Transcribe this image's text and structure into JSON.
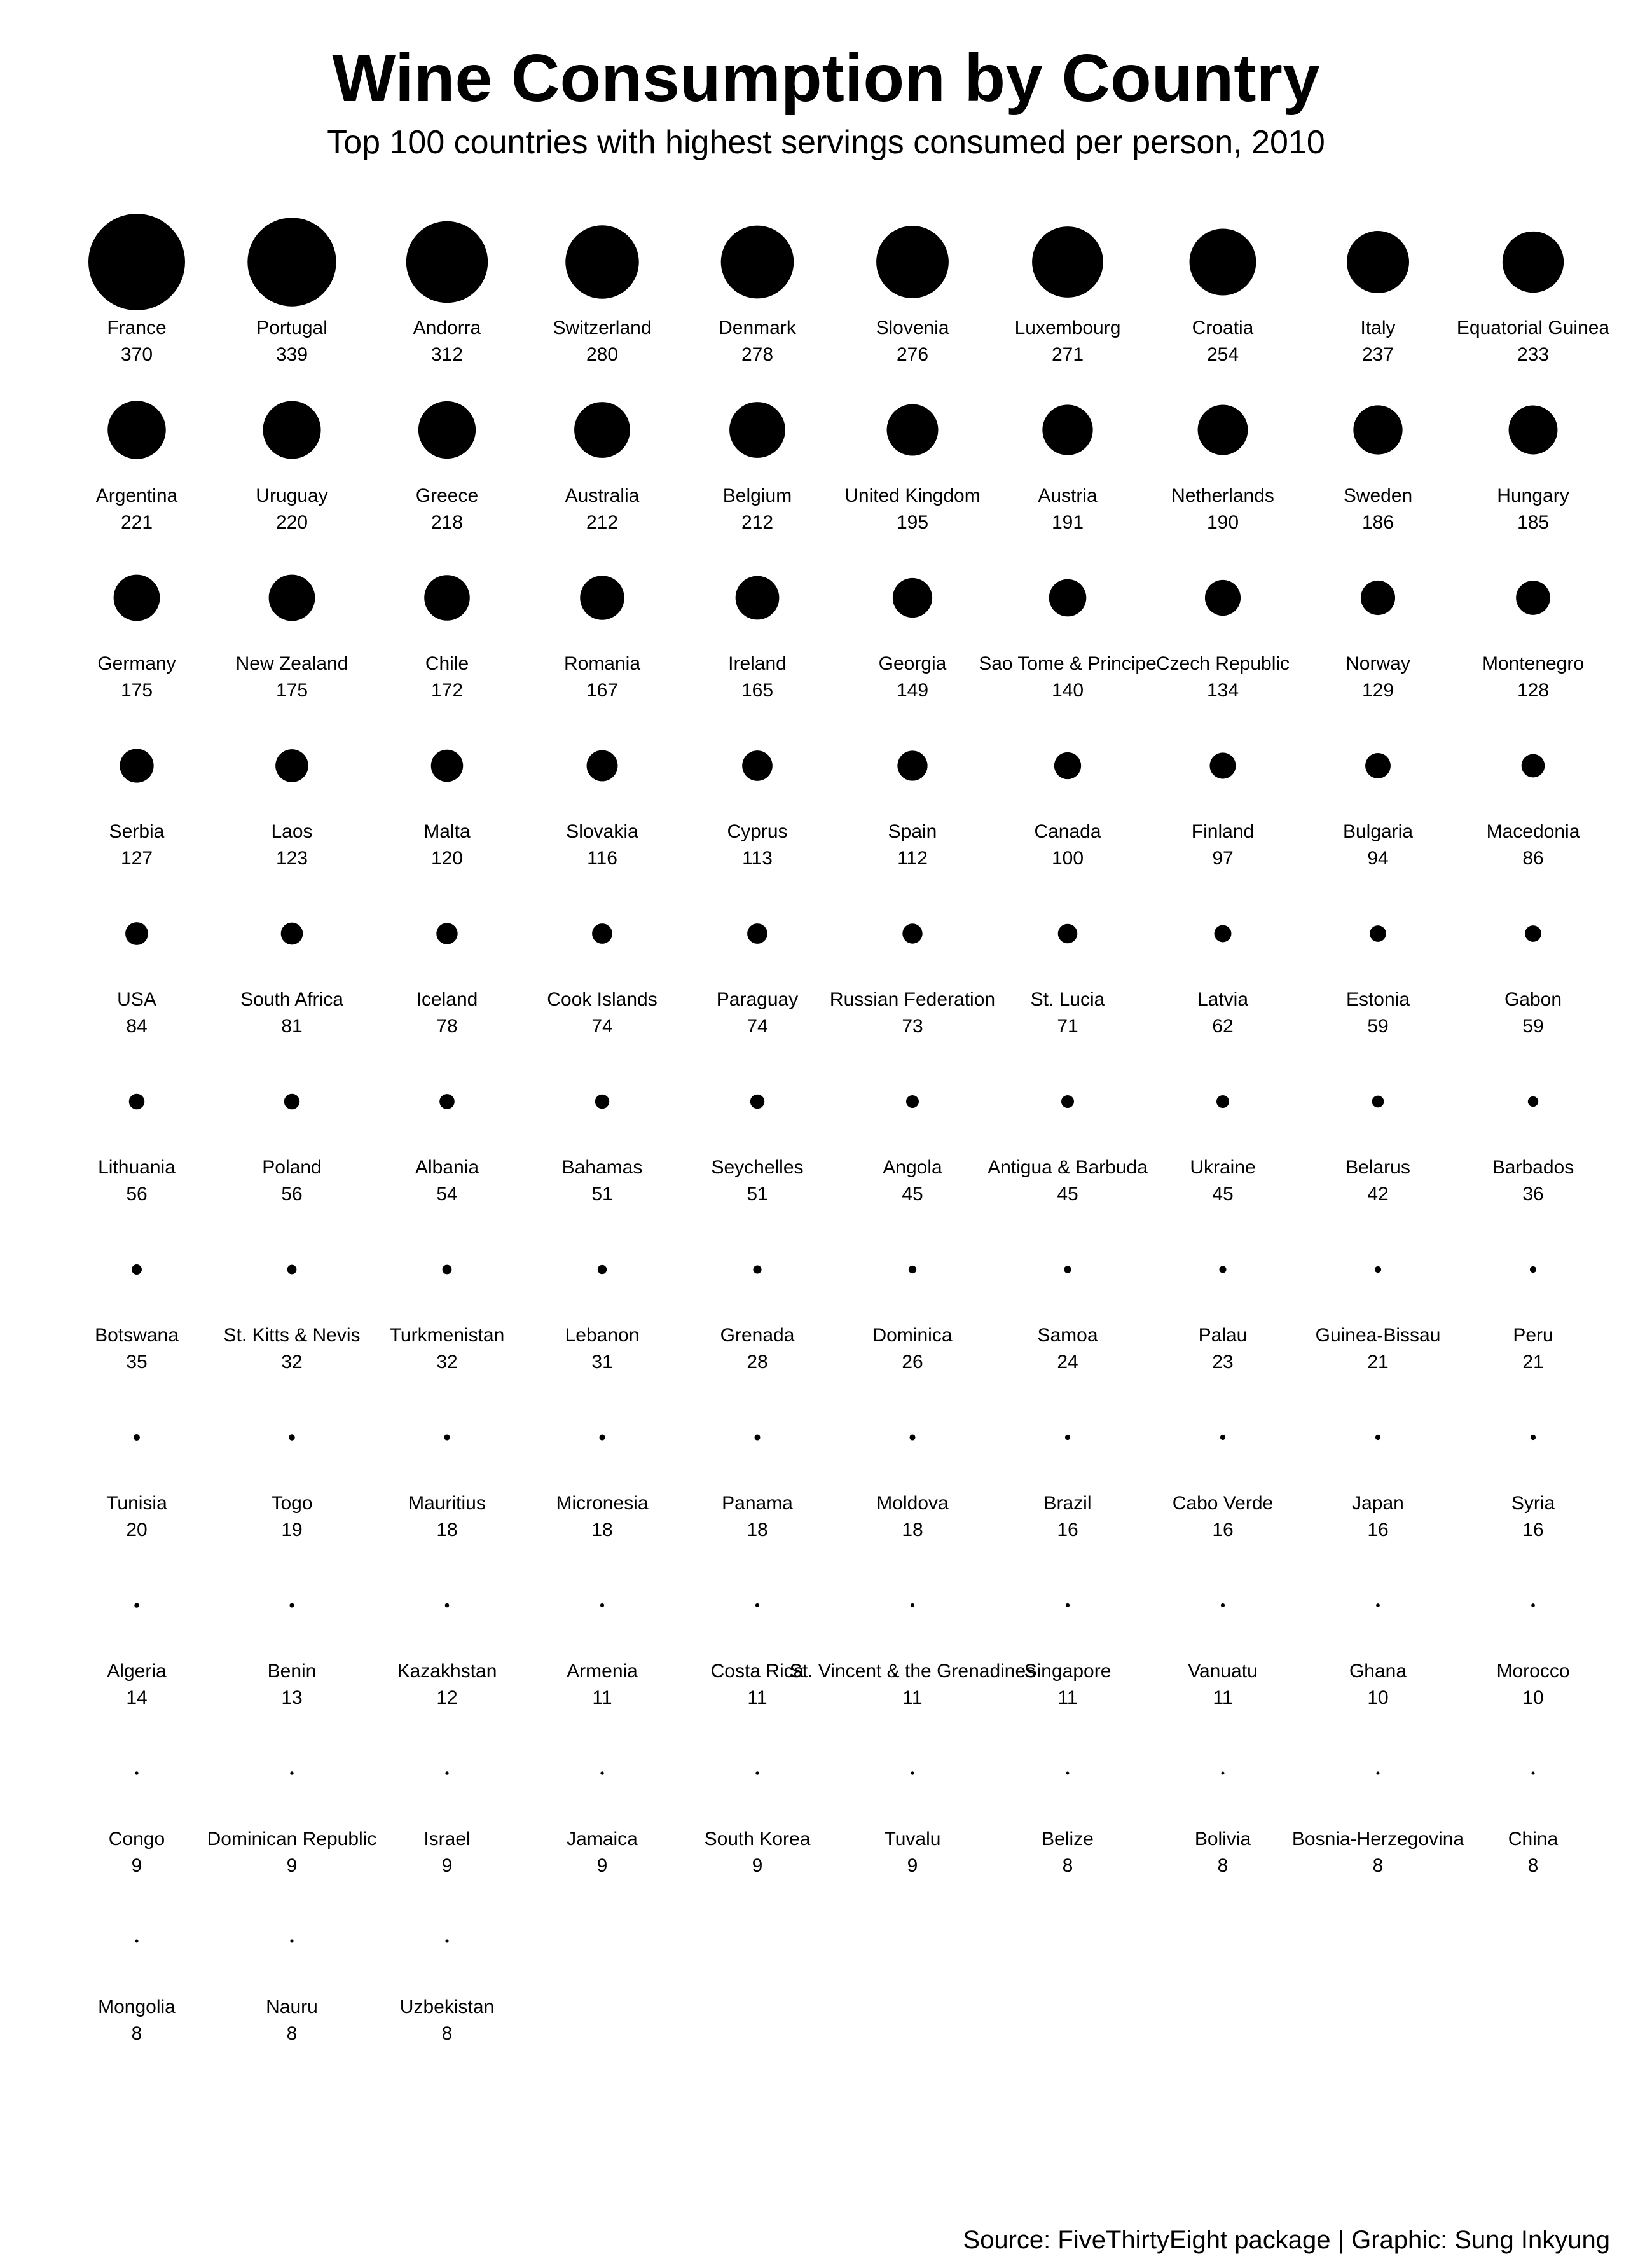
{
  "chart_data": {
    "type": "scatter",
    "title": "Wine Consumption by Country",
    "subtitle": "Top 100 countries with highest servings consumed per person, 2010",
    "caption": "Source: FiveThirtyEight package | Graphic: Sung Inkyung",
    "columns": 10,
    "marker_color": "#000000",
    "grid": false,
    "legend": "none",
    "data": [
      {
        "country": "France",
        "value": 370
      },
      {
        "country": "Portugal",
        "value": 339
      },
      {
        "country": "Andorra",
        "value": 312
      },
      {
        "country": "Switzerland",
        "value": 280
      },
      {
        "country": "Denmark",
        "value": 278
      },
      {
        "country": "Slovenia",
        "value": 276
      },
      {
        "country": "Luxembourg",
        "value": 271
      },
      {
        "country": "Croatia",
        "value": 254
      },
      {
        "country": "Italy",
        "value": 237
      },
      {
        "country": "Equatorial Guinea",
        "value": 233
      },
      {
        "country": "Argentina",
        "value": 221
      },
      {
        "country": "Uruguay",
        "value": 220
      },
      {
        "country": "Greece",
        "value": 218
      },
      {
        "country": "Australia",
        "value": 212
      },
      {
        "country": "Belgium",
        "value": 212
      },
      {
        "country": "United Kingdom",
        "value": 195
      },
      {
        "country": "Austria",
        "value": 191
      },
      {
        "country": "Netherlands",
        "value": 190
      },
      {
        "country": "Sweden",
        "value": 186
      },
      {
        "country": "Hungary",
        "value": 185
      },
      {
        "country": "Germany",
        "value": 175
      },
      {
        "country": "New Zealand",
        "value": 175
      },
      {
        "country": "Chile",
        "value": 172
      },
      {
        "country": "Romania",
        "value": 167
      },
      {
        "country": "Ireland",
        "value": 165
      },
      {
        "country": "Georgia",
        "value": 149
      },
      {
        "country": "Sao Tome & Principe",
        "value": 140
      },
      {
        "country": "Czech Republic",
        "value": 134
      },
      {
        "country": "Norway",
        "value": 129
      },
      {
        "country": "Montenegro",
        "value": 128
      },
      {
        "country": "Serbia",
        "value": 127
      },
      {
        "country": "Laos",
        "value": 123
      },
      {
        "country": "Malta",
        "value": 120
      },
      {
        "country": "Slovakia",
        "value": 116
      },
      {
        "country": "Cyprus",
        "value": 113
      },
      {
        "country": "Spain",
        "value": 112
      },
      {
        "country": "Canada",
        "value": 100
      },
      {
        "country": "Finland",
        "value": 97
      },
      {
        "country": "Bulgaria",
        "value": 94
      },
      {
        "country": "Macedonia",
        "value": 86
      },
      {
        "country": "USA",
        "value": 84
      },
      {
        "country": "South Africa",
        "value": 81
      },
      {
        "country": "Iceland",
        "value": 78
      },
      {
        "country": "Cook Islands",
        "value": 74
      },
      {
        "country": "Paraguay",
        "value": 74
      },
      {
        "country": "Russian Federation",
        "value": 73
      },
      {
        "country": "St. Lucia",
        "value": 71
      },
      {
        "country": "Latvia",
        "value": 62
      },
      {
        "country": "Estonia",
        "value": 59
      },
      {
        "country": "Gabon",
        "value": 59
      },
      {
        "country": "Lithuania",
        "value": 56
      },
      {
        "country": "Poland",
        "value": 56
      },
      {
        "country": "Albania",
        "value": 54
      },
      {
        "country": "Bahamas",
        "value": 51
      },
      {
        "country": "Seychelles",
        "value": 51
      },
      {
        "country": "Angola",
        "value": 45
      },
      {
        "country": "Antigua & Barbuda",
        "value": 45
      },
      {
        "country": "Ukraine",
        "value": 45
      },
      {
        "country": "Belarus",
        "value": 42
      },
      {
        "country": "Barbados",
        "value": 36
      },
      {
        "country": "Botswana",
        "value": 35
      },
      {
        "country": "St. Kitts & Nevis",
        "value": 32
      },
      {
        "country": "Turkmenistan",
        "value": 32
      },
      {
        "country": "Lebanon",
        "value": 31
      },
      {
        "country": "Grenada",
        "value": 28
      },
      {
        "country": "Dominica",
        "value": 26
      },
      {
        "country": "Samoa",
        "value": 24
      },
      {
        "country": "Palau",
        "value": 23
      },
      {
        "country": "Guinea-Bissau",
        "value": 21
      },
      {
        "country": "Peru",
        "value": 21
      },
      {
        "country": "Tunisia",
        "value": 20
      },
      {
        "country": "Togo",
        "value": 19
      },
      {
        "country": "Mauritius",
        "value": 18
      },
      {
        "country": "Micronesia",
        "value": 18
      },
      {
        "country": "Panama",
        "value": 18
      },
      {
        "country": "Moldova",
        "value": 18
      },
      {
        "country": "Brazil",
        "value": 16
      },
      {
        "country": "Cabo Verde",
        "value": 16
      },
      {
        "country": "Japan",
        "value": 16
      },
      {
        "country": "Syria",
        "value": 16
      },
      {
        "country": "Algeria",
        "value": 14
      },
      {
        "country": "Benin",
        "value": 13
      },
      {
        "country": "Kazakhstan",
        "value": 12
      },
      {
        "country": "Armenia",
        "value": 11
      },
      {
        "country": "Costa Rica",
        "value": 11
      },
      {
        "country": "St. Vincent & the Grenadines",
        "value": 11
      },
      {
        "country": "Singapore",
        "value": 11
      },
      {
        "country": "Vanuatu",
        "value": 11
      },
      {
        "country": "Ghana",
        "value": 10
      },
      {
        "country": "Morocco",
        "value": 10
      },
      {
        "country": "Congo",
        "value": 9
      },
      {
        "country": "Dominican Republic",
        "value": 9
      },
      {
        "country": "Israel",
        "value": 9
      },
      {
        "country": "Jamaica",
        "value": 9
      },
      {
        "country": "South Korea",
        "value": 9
      },
      {
        "country": "Tuvalu",
        "value": 9
      },
      {
        "country": "Belize",
        "value": 8
      },
      {
        "country": "Bolivia",
        "value": 8
      },
      {
        "country": "Bosnia-Herzegovina",
        "value": 8
      },
      {
        "country": "China",
        "value": 8
      },
      {
        "country": "Mongolia",
        "value": 8
      },
      {
        "country": "Nauru",
        "value": 8
      },
      {
        "country": "Uzbekistan",
        "value": 8
      }
    ]
  }
}
